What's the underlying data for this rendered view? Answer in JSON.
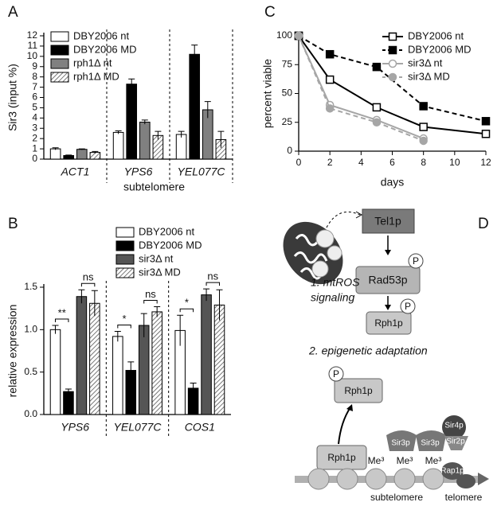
{
  "panel_labels": [
    "A",
    "B",
    "C",
    "D"
  ],
  "chart_data": [
    {
      "type": "bar",
      "y_label": "Sir3 (input %)",
      "x_label": "subtelomere",
      "categories": [
        "ACT1",
        "YPS6",
        "YEL077C"
      ],
      "series": [
        {
          "name": "DBY2006 nt",
          "color": "#ffffff",
          "values": [
            1.0,
            2.6,
            2.4
          ],
          "errors": [
            0.1,
            0.15,
            0.3
          ]
        },
        {
          "name": "DBY2006 MD",
          "color": "#000000",
          "values": [
            0.35,
            7.3,
            10.2
          ],
          "errors": [
            0.05,
            0.5,
            0.9
          ]
        },
        {
          "name": "rph1Δ nt",
          "color": "#808080",
          "values": [
            0.95,
            3.6,
            4.8
          ],
          "errors": [
            0.05,
            0.2,
            0.8
          ]
        },
        {
          "name": "rph1Δ MD",
          "color": "#ffffff",
          "hatch": true,
          "values": [
            0.65,
            2.3,
            1.9
          ],
          "errors": [
            0.1,
            0.4,
            0.8
          ]
        }
      ],
      "ylim": [
        0,
        12
      ],
      "yticks": [
        0,
        1,
        2,
        3,
        4,
        5,
        6,
        7,
        8,
        9,
        10,
        11,
        12
      ]
    },
    {
      "type": "bar",
      "y_label": "relative expression",
      "categories": [
        "YPS6",
        "YEL077C",
        "COS1"
      ],
      "series": [
        {
          "name": "DBY2006 nt",
          "color": "#ffffff",
          "values": [
            1.0,
            0.92,
            0.99
          ],
          "errors": [
            0.05,
            0.06,
            0.18
          ]
        },
        {
          "name": "DBY2006 MD",
          "color": "#000000",
          "values": [
            0.27,
            0.52,
            0.31
          ],
          "errors": [
            0.03,
            0.1,
            0.06
          ]
        },
        {
          "name": "sir3Δ nt",
          "color": "#555555",
          "values": [
            1.39,
            1.05,
            1.41
          ],
          "errors": [
            0.08,
            0.14,
            0.07
          ]
        },
        {
          "name": "sir3Δ MD",
          "color": "#ffffff",
          "hatch": true,
          "values": [
            1.31,
            1.21,
            1.29
          ],
          "errors": [
            0.15,
            0.06,
            0.18
          ]
        }
      ],
      "significance": [
        [
          "**",
          "ns"
        ],
        [
          "*",
          "ns"
        ],
        [
          "*",
          "ns"
        ]
      ],
      "ylim": [
        0,
        1.5
      ],
      "yticks": [
        {
          "value": 0,
          "label": "0.0"
        },
        0.5,
        {
          "value": 1,
          "label": "1.0"
        },
        1.5
      ]
    },
    {
      "type": "line",
      "y_label": "percent viable",
      "x_label": "days",
      "x": [
        0,
        2,
        5,
        8,
        12
      ],
      "series": [
        {
          "name": "DBY2006 nt",
          "color": "#000000",
          "marker": "square",
          "filled": false,
          "dashed": false,
          "values": [
            100,
            62,
            38,
            21,
            15
          ]
        },
        {
          "name": "DBY2006 MD",
          "color": "#000000",
          "marker": "square",
          "filled": true,
          "dashed": true,
          "values": [
            100,
            84,
            73,
            39,
            26
          ]
        },
        {
          "name": "sir3Δ nt",
          "color": "#a6a6a6",
          "marker": "circle",
          "filled": false,
          "dashed": false,
          "values": [
            100,
            40,
            27,
            11,
            null
          ]
        },
        {
          "name": "sir3Δ MD",
          "color": "#a6a6a6",
          "marker": "circle",
          "filled": true,
          "dashed": true,
          "values": [
            100,
            37,
            25,
            9,
            null
          ]
        }
      ],
      "xlim": [
        0,
        12
      ],
      "xticks": [
        0,
        2,
        4,
        6,
        8,
        10,
        12
      ],
      "ylim": [
        0,
        100
      ],
      "yticks": [
        0,
        25,
        50,
        75,
        100
      ]
    }
  ],
  "diagram": {
    "tel1": "Tel1p",
    "rad53": "Rad53p",
    "rph1_signal": "Rph1p",
    "phospho": "P",
    "step1": [
      "1. mtROS",
      "signaling"
    ],
    "step2": "2. epigenetic adaptation",
    "rph1_p": "Rph1p",
    "rph1": "Rph1p",
    "sir3": "Sir3p",
    "sir4": "Sir4p",
    "sir2": "Sir2p",
    "rap1": "Rap1p",
    "me3": "Me³",
    "subtelomere": "subtelomere",
    "telomere": "telomere"
  }
}
